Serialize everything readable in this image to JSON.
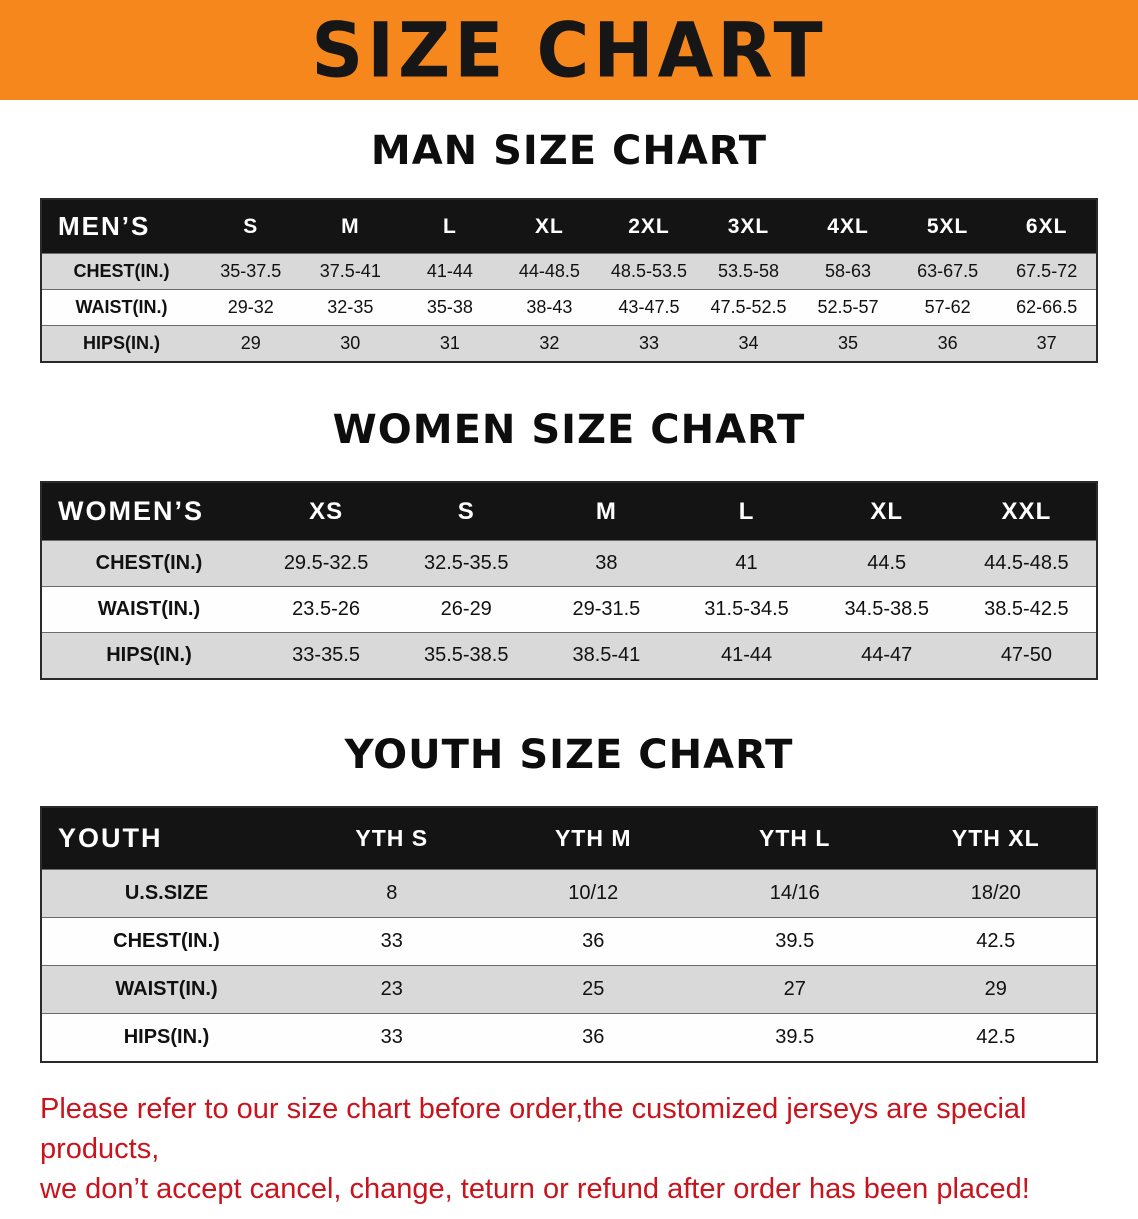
{
  "banner": {
    "title": "SIZE CHART",
    "bg_color": "#f6871d",
    "text_color": "#161616"
  },
  "sections": [
    {
      "heading": "MAN SIZE CHART",
      "table": {
        "header": [
          "MEN’S",
          "S",
          "M",
          "L",
          "XL",
          "2XL",
          "3XL",
          "4XL",
          "5XL",
          "6XL"
        ],
        "rows": [
          [
            "CHEST(IN.)",
            "35-37.5",
            "37.5-41",
            "41-44",
            "44-48.5",
            "48.5-53.5",
            "53.5-58",
            "58-63",
            "63-67.5",
            "67.5-72"
          ],
          [
            "WAIST(IN.)",
            "29-32",
            "32-35",
            "35-38",
            "38-43",
            "43-47.5",
            "47.5-52.5",
            "52.5-57",
            "57-62",
            "62-66.5"
          ],
          [
            "HIPS(IN.)",
            "29",
            "30",
            "31",
            "32",
            "33",
            "34",
            "35",
            "36",
            "37"
          ]
        ]
      }
    },
    {
      "heading": "WOMEN SIZE CHART",
      "table": {
        "header": [
          "WOMEN’S",
          "XS",
          "S",
          "M",
          "L",
          "XL",
          "XXL"
        ],
        "rows": [
          [
            "CHEST(IN.)",
            "29.5-32.5",
            "32.5-35.5",
            "38",
            "41",
            "44.5",
            "44.5-48.5"
          ],
          [
            "WAIST(IN.)",
            "23.5-26",
            "26-29",
            "29-31.5",
            "31.5-34.5",
            "34.5-38.5",
            "38.5-42.5"
          ],
          [
            "HIPS(IN.)",
            "33-35.5",
            "35.5-38.5",
            "38.5-41",
            "41-44",
            "44-47",
            "47-50"
          ]
        ]
      }
    },
    {
      "heading": "YOUTH SIZE CHART",
      "table": {
        "header": [
          "YOUTH",
          "YTH S",
          "YTH M",
          "YTH L",
          "YTH XL"
        ],
        "rows": [
          [
            "U.S.SIZE",
            "8",
            "10/12",
            "14/16",
            "18/20"
          ],
          [
            "CHEST(IN.)",
            "33",
            "36",
            "39.5",
            "42.5"
          ],
          [
            "WAIST(IN.)",
            "23",
            "25",
            "27",
            "29"
          ],
          [
            "HIPS(IN.)",
            "33",
            "36",
            "39.5",
            "42.5"
          ]
        ]
      }
    }
  ],
  "table_colors": {
    "header_bg": "#141414",
    "header_text": "#ffffff",
    "stripe_gray": "#d9d9d9",
    "stripe_white": "#fefefe"
  },
  "disclaimer": {
    "line1": "Please refer to our size chart before order,the customized jerseys are special products,",
    "line2": "we don’t accept cancel, change, teturn or refund after order has been placed!",
    "color": "#c9141e"
  }
}
